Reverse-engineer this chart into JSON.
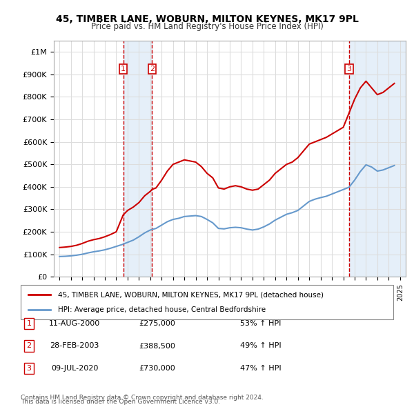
{
  "title": "45, TIMBER LANE, WOBURN, MILTON KEYNES, MK17 9PL",
  "subtitle": "Price paid vs. HM Land Registry's House Price Index (HPI)",
  "legend_line1": "45, TIMBER LANE, WOBURN, MILTON KEYNES, MK17 9PL (detached house)",
  "legend_line2": "HPI: Average price, detached house, Central Bedfordshire",
  "footer1": "Contains HM Land Registry data © Crown copyright and database right 2024.",
  "footer2": "This data is licensed under the Open Government Licence v3.0.",
  "sales": [
    {
      "num": 1,
      "date": "11-AUG-2000",
      "price": "£275,000",
      "pct": "53% ↑ HPI",
      "year": 2000.61
    },
    {
      "num": 2,
      "date": "28-FEB-2003",
      "price": "£388,500",
      "pct": "49% ↑ HPI",
      "year": 2003.16
    },
    {
      "num": 3,
      "date": "09-JUL-2020",
      "price": "£730,000",
      "pct": "47% ↑ HPI",
      "year": 2020.52
    }
  ],
  "ylim": [
    0,
    1050000
  ],
  "xlim_start": 1994.5,
  "xlim_end": 2025.5,
  "red_color": "#cc0000",
  "blue_color": "#6699cc",
  "shading_color": "#cce0f5",
  "grid_color": "#dddddd",
  "background_color": "#ffffff",
  "sale_marker_color": "#cc0000",
  "red_line_data_x": [
    1995.0,
    1995.5,
    1996.0,
    1996.5,
    1997.0,
    1997.5,
    1998.0,
    1998.5,
    1999.0,
    1999.5,
    2000.0,
    2000.61,
    2001.0,
    2001.5,
    2002.0,
    2002.5,
    2003.0,
    2003.16,
    2003.5,
    2004.0,
    2004.5,
    2005.0,
    2005.5,
    2006.0,
    2006.5,
    2007.0,
    2007.5,
    2008.0,
    2008.5,
    2009.0,
    2009.5,
    2010.0,
    2010.5,
    2011.0,
    2011.5,
    2012.0,
    2012.5,
    2013.0,
    2013.5,
    2014.0,
    2014.5,
    2015.0,
    2015.5,
    2016.0,
    2016.5,
    2017.0,
    2017.5,
    2018.0,
    2018.5,
    2019.0,
    2019.5,
    2020.0,
    2020.52,
    2021.0,
    2021.5,
    2022.0,
    2022.5,
    2023.0,
    2023.5,
    2024.0,
    2024.5
  ],
  "red_line_data_y": [
    130000,
    132000,
    135000,
    140000,
    148000,
    158000,
    165000,
    170000,
    178000,
    188000,
    200000,
    275000,
    295000,
    310000,
    330000,
    360000,
    380000,
    388500,
    395000,
    430000,
    470000,
    500000,
    510000,
    520000,
    515000,
    510000,
    490000,
    460000,
    440000,
    395000,
    390000,
    400000,
    405000,
    400000,
    390000,
    385000,
    390000,
    410000,
    430000,
    460000,
    480000,
    500000,
    510000,
    530000,
    560000,
    590000,
    600000,
    610000,
    620000,
    635000,
    650000,
    665000,
    730000,
    790000,
    840000,
    870000,
    840000,
    810000,
    820000,
    840000,
    860000
  ],
  "blue_line_data_x": [
    1995.0,
    1995.5,
    1996.0,
    1996.5,
    1997.0,
    1997.5,
    1998.0,
    1998.5,
    1999.0,
    1999.5,
    2000.0,
    2000.5,
    2001.0,
    2001.5,
    2002.0,
    2002.5,
    2003.0,
    2003.5,
    2004.0,
    2004.5,
    2005.0,
    2005.5,
    2006.0,
    2006.5,
    2007.0,
    2007.5,
    2008.0,
    2008.5,
    2009.0,
    2009.5,
    2010.0,
    2010.5,
    2011.0,
    2011.5,
    2012.0,
    2012.5,
    2013.0,
    2013.5,
    2014.0,
    2014.5,
    2015.0,
    2015.5,
    2016.0,
    2016.5,
    2017.0,
    2017.5,
    2018.0,
    2018.5,
    2019.0,
    2019.5,
    2020.0,
    2020.5,
    2021.0,
    2021.5,
    2022.0,
    2022.5,
    2023.0,
    2023.5,
    2024.0,
    2024.5
  ],
  "blue_line_data_y": [
    90000,
    91000,
    93000,
    96000,
    100000,
    106000,
    111000,
    115000,
    120000,
    127000,
    135000,
    143000,
    153000,
    163000,
    178000,
    195000,
    208000,
    215000,
    230000,
    245000,
    255000,
    260000,
    268000,
    270000,
    272000,
    268000,
    255000,
    240000,
    215000,
    213000,
    218000,
    220000,
    218000,
    212000,
    208000,
    212000,
    222000,
    235000,
    252000,
    265000,
    278000,
    285000,
    295000,
    315000,
    335000,
    345000,
    352000,
    358000,
    368000,
    378000,
    388000,
    398000,
    430000,
    468000,
    498000,
    488000,
    470000,
    475000,
    485000,
    495000
  ]
}
